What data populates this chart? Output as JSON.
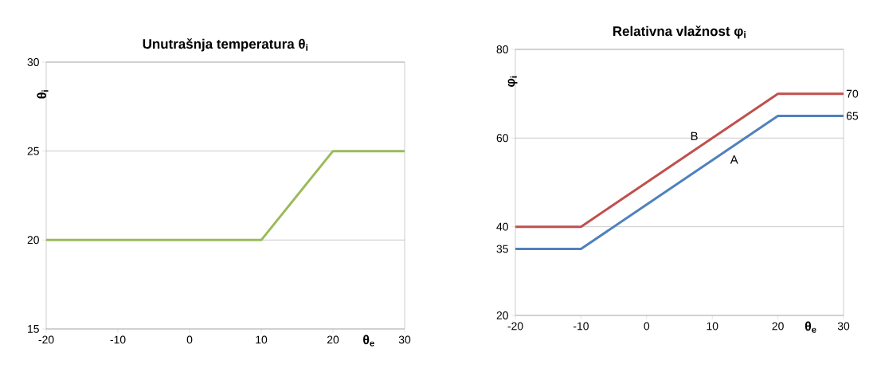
{
  "chart_data": [
    {
      "type": "line",
      "title": "Unutrašnja temperatura θ$_{i}$",
      "xlabel": "θ$_{e}$",
      "ylabel": "θ$_{i}$",
      "x": [
        -20,
        10,
        20,
        30
      ],
      "series": [
        {
          "color": "#9bbb59",
          "values": [
            20,
            20,
            25,
            25
          ]
        }
      ],
      "xlim": [
        -20,
        30
      ],
      "xticks": [
        -20,
        -10,
        0,
        10,
        20,
        30
      ],
      "ylim": [
        15,
        30
      ],
      "yticks": [
        15,
        20,
        25,
        30
      ],
      "grid": "y"
    },
    {
      "type": "line",
      "title": "Relativna vlažnost φ$_{i}$",
      "xlabel": "θ$_{e}$",
      "ylabel": "φ$_{i}$",
      "x": [
        -20,
        -10,
        20,
        30
      ],
      "series": [
        {
          "name": "A",
          "color": "#4f81bd",
          "values": [
            35,
            35,
            65,
            65
          ]
        },
        {
          "name": "B",
          "color": "#c0504d",
          "values": [
            40,
            40,
            70,
            70
          ]
        }
      ],
      "xlim": [
        -20,
        30
      ],
      "xticks": [
        -20,
        -10,
        0,
        10,
        20,
        30
      ],
      "ylim": [
        20,
        80
      ],
      "yticks": [
        20,
        {
          "value": 35,
          "label": "35"
        },
        40,
        60,
        80
      ],
      "grid": "y",
      "annotations": [
        {
          "text": "70",
          "x": 30,
          "y": 70
        },
        {
          "text": "65",
          "x": 30,
          "y": 65
        }
      ]
    }
  ]
}
